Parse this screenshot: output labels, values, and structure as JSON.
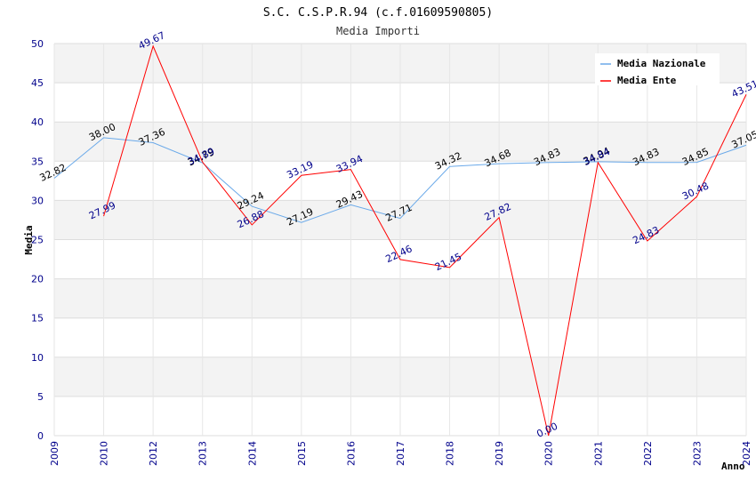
{
  "chart_data": {
    "type": "line",
    "title": "S.C. C.S.P.R.94 (c.f.01609590805)",
    "subtitle": "Media Importi",
    "xlabel": "Anno",
    "ylabel": "Media",
    "ylim": [
      0,
      50
    ],
    "yticks": [
      "0",
      "5",
      "10",
      "15",
      "20",
      "25",
      "30",
      "35",
      "40",
      "45",
      "50"
    ],
    "categories": [
      "2009",
      "2010",
      "2012",
      "2013",
      "2014",
      "2015",
      "2016",
      "2017",
      "2018",
      "2019",
      "2020",
      "2021",
      "2022",
      "2023",
      "2024"
    ],
    "series": [
      {
        "name": "Media Nazionale",
        "color": "#6aa9e9",
        "values": [
          32.82,
          38.0,
          37.36,
          34.79,
          29.24,
          27.19,
          29.43,
          27.71,
          34.32,
          34.68,
          34.83,
          34.94,
          34.83,
          34.85,
          37.05
        ],
        "labels": [
          "32.82",
          "38.00",
          "37.36",
          "34.79",
          "29.24",
          "27.19",
          "29.43",
          "27.71",
          "34.32",
          "34.68",
          "34.83",
          "34.94",
          "34.83",
          "34.85",
          "37.05"
        ]
      },
      {
        "name": "Media Ente",
        "color": "#ff0000",
        "values": [
          null,
          27.99,
          49.67,
          34.89,
          26.88,
          33.19,
          33.94,
          22.46,
          21.45,
          27.82,
          0.0,
          34.84,
          24.83,
          30.48,
          43.51
        ],
        "labels": [
          null,
          "27.99",
          "49.67",
          "34.89",
          "26.88",
          "33.19",
          "33.94",
          "22.46",
          "21.45",
          "27.82",
          "0.00",
          "34.84",
          "24.83",
          "30.48",
          "43.51"
        ]
      }
    ],
    "legend": "top-right",
    "grid": true
  }
}
